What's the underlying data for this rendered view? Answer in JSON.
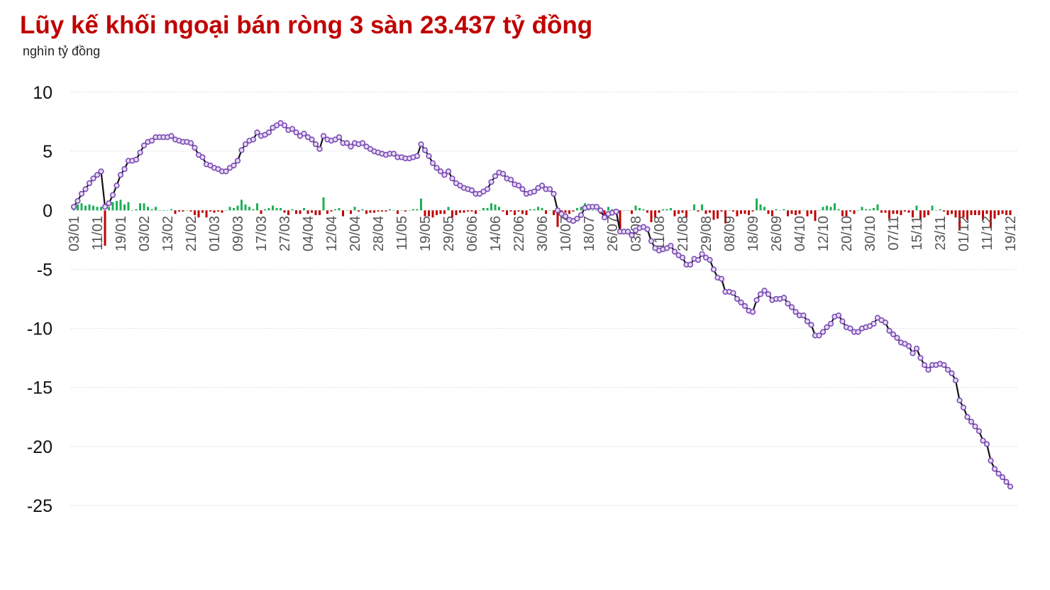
{
  "chart_data": {
    "type": "line-bar",
    "title": "Lũy kế khối ngoại bán ròng 3 sàn 23.437 tỷ đồng",
    "subtitle": "nghìn tỷ đồng",
    "ylim": [
      -25,
      10
    ],
    "yticks": [
      10,
      5,
      0,
      -5,
      -10,
      -15,
      -20,
      -25
    ],
    "grid": true,
    "categories": [
      "03/01",
      null,
      null,
      null,
      null,
      null,
      "11/01",
      null,
      null,
      null,
      null,
      null,
      "19/01",
      null,
      null,
      null,
      null,
      null,
      "03/02",
      null,
      null,
      null,
      null,
      null,
      "13/02",
      null,
      null,
      null,
      null,
      null,
      "21/02",
      null,
      null,
      null,
      null,
      null,
      "01/03",
      null,
      null,
      null,
      null,
      null,
      "09/03",
      null,
      null,
      null,
      null,
      null,
      "17/03",
      null,
      null,
      null,
      null,
      null,
      "27/03",
      null,
      null,
      null,
      null,
      null,
      "04/04",
      null,
      null,
      null,
      null,
      null,
      "12/04",
      null,
      null,
      null,
      null,
      null,
      "20/04",
      null,
      null,
      null,
      null,
      null,
      "28/04",
      null,
      null,
      null,
      null,
      null,
      "11/05",
      null,
      null,
      null,
      null,
      null,
      "19/05",
      null,
      null,
      null,
      null,
      null,
      "29/05",
      null,
      null,
      null,
      null,
      null,
      "06/06",
      null,
      null,
      null,
      null,
      null,
      "14/06",
      null,
      null,
      null,
      null,
      null,
      "22/06",
      null,
      null,
      null,
      null,
      null,
      "30/06",
      null,
      null,
      null,
      null,
      null,
      "10/07",
      null,
      null,
      null,
      null,
      null,
      "18/07",
      null,
      null,
      null,
      null,
      null,
      "26/07",
      null,
      null,
      null,
      null,
      null,
      "03/08",
      null,
      null,
      null,
      null,
      null,
      "11/08",
      null,
      null,
      null,
      null,
      null,
      "21/08",
      null,
      null,
      null,
      null,
      null,
      "29/08",
      null,
      null,
      null,
      null,
      null,
      "08/09",
      null,
      null,
      null,
      null,
      null,
      "18/09",
      null,
      null,
      null,
      null,
      null,
      "26/09",
      null,
      null,
      null,
      null,
      null,
      "04/10",
      null,
      null,
      null,
      null,
      null,
      "12/10",
      null,
      null,
      null,
      null,
      null,
      "20/10",
      null,
      null,
      null,
      null,
      null,
      "30/10",
      null,
      null,
      null,
      null,
      null,
      "07/11",
      null,
      null,
      null,
      null,
      null,
      "15/11",
      null,
      null,
      null,
      null,
      null,
      "23/11",
      null,
      null,
      null,
      null,
      null,
      "01/12",
      null,
      null,
      null,
      null,
      null,
      "11/12",
      null,
      null,
      null,
      null,
      null,
      "19/12"
    ],
    "line": {
      "color": "#111111",
      "marker_color": "#7b4bb5",
      "marker_fill": "#e6dcf3",
      "values": [
        0.3,
        0.8,
        1.4,
        1.8,
        2.3,
        2.7,
        3.0,
        3.3,
        0.3,
        0.6,
        1.3,
        2.1,
        3.0,
        3.5,
        4.2,
        4.2,
        4.3,
        4.9,
        5.5,
        5.8,
        5.9,
        6.2,
        6.2,
        6.2,
        6.2,
        6.3,
        6.0,
        5.9,
        5.8,
        5.8,
        5.7,
        5.3,
        4.7,
        4.5,
        3.9,
        3.8,
        3.6,
        3.5,
        3.3,
        3.3,
        3.6,
        3.8,
        4.2,
        5.1,
        5.6,
        5.9,
        6.0,
        6.6,
        6.3,
        6.4,
        6.6,
        7.0,
        7.2,
        7.4,
        7.2,
        6.8,
        6.9,
        6.6,
        6.3,
        6.5,
        6.2,
        6.0,
        5.6,
        5.2,
        6.3,
        6.0,
        5.9,
        6.0,
        6.2,
        5.7,
        5.7,
        5.4,
        5.7,
        5.6,
        5.7,
        5.4,
        5.2,
        5.0,
        4.9,
        4.8,
        4.7,
        4.8,
        4.8,
        4.5,
        4.5,
        4.4,
        4.4,
        4.5,
        4.6,
        5.6,
        5.1,
        4.6,
        4.0,
        3.6,
        3.3,
        3.0,
        3.3,
        2.7,
        2.3,
        2.1,
        1.9,
        1.8,
        1.7,
        1.4,
        1.4,
        1.6,
        1.8,
        2.4,
        2.9,
        3.2,
        3.1,
        2.7,
        2.6,
        2.2,
        2.1,
        1.8,
        1.4,
        1.5,
        1.6,
        1.9,
        2.1,
        1.8,
        1.8,
        1.4,
        0.0,
        -0.3,
        -0.5,
        -0.8,
        -0.9,
        -0.7,
        -0.4,
        0.2,
        0.3,
        0.3,
        0.3,
        0.0,
        -0.6,
        -0.3,
        -0.2,
        -0.1,
        -1.8,
        -1.8,
        -1.8,
        -2.1,
        -1.7,
        -1.5,
        -1.4,
        -1.6,
        -2.6,
        -3.2,
        -3.4,
        -3.3,
        -3.2,
        -3.0,
        -3.5,
        -3.8,
        -4.0,
        -4.6,
        -4.6,
        -4.1,
        -4.2,
        -3.7,
        -4.0,
        -4.2,
        -5.0,
        -5.7,
        -5.8,
        -6.9,
        -6.9,
        -7.0,
        -7.5,
        -7.8,
        -8.1,
        -8.5,
        -8.6,
        -7.6,
        -7.1,
        -6.8,
        -7.1,
        -7.6,
        -7.5,
        -7.5,
        -7.4,
        -7.9,
        -8.2,
        -8.6,
        -8.9,
        -8.9,
        -9.4,
        -9.7,
        -10.6,
        -10.6,
        -10.3,
        -9.9,
        -9.6,
        -9.0,
        -8.9,
        -9.4,
        -9.9,
        -10.0,
        -10.3,
        -10.3,
        -10.0,
        -9.9,
        -9.8,
        -9.6,
        -9.1,
        -9.3,
        -9.5,
        -10.2,
        -10.5,
        -10.8,
        -11.2,
        -11.3,
        -11.5,
        -12.1,
        -11.7,
        -12.5,
        -13.1,
        -13.5,
        -13.1,
        -13.1,
        -13.0,
        -13.1,
        -13.5,
        -13.8,
        -14.4,
        -16.1,
        -16.7,
        -17.5,
        -17.9,
        -18.3,
        -18.7,
        -19.5,
        -19.8,
        -21.2,
        -21.9,
        -22.3,
        -22.6,
        -23.0,
        -23.4
      ]
    },
    "bars": {
      "pos_color": "#1fae57",
      "neg_color": "#c00000",
      "values": [
        0.3,
        0.5,
        0.6,
        0.4,
        0.5,
        0.4,
        0.3,
        0.3,
        -3.0,
        0.3,
        0.7,
        0.8,
        0.9,
        0.5,
        0.7,
        0,
        0.1,
        0.6,
        0.6,
        0.3,
        0.1,
        0.3,
        0,
        0,
        0,
        0.1,
        -0.3,
        -0.1,
        -0.1,
        0,
        -0.1,
        -0.4,
        -0.6,
        -0.2,
        -0.6,
        -0.1,
        -0.2,
        -0.1,
        -0.2,
        0,
        0.3,
        0.2,
        0.4,
        0.9,
        0.5,
        0.3,
        0.1,
        0.6,
        -0.3,
        0.1,
        0.2,
        0.4,
        0.2,
        0.2,
        -0.2,
        -0.4,
        0.1,
        -0.3,
        -0.3,
        0.2,
        -0.3,
        -0.2,
        -0.4,
        -0.4,
        1.1,
        -0.3,
        -0.1,
        0.1,
        0.2,
        -0.5,
        0,
        -0.3,
        0.3,
        -0.1,
        0.1,
        -0.3,
        -0.2,
        -0.2,
        -0.1,
        -0.1,
        -0.1,
        0.1,
        0,
        -0.3,
        0,
        -0.1,
        0,
        0.1,
        0.1,
        1.0,
        -0.5,
        -0.5,
        -0.6,
        -0.4,
        -0.3,
        -0.3,
        0.3,
        -0.6,
        -0.4,
        -0.2,
        -0.2,
        -0.1,
        -0.1,
        -0.3,
        0,
        0.2,
        0.2,
        0.6,
        0.5,
        0.3,
        -0.1,
        -0.4,
        -0.1,
        -0.4,
        -0.1,
        -0.3,
        -0.4,
        0.1,
        0.1,
        0.3,
        0.2,
        -0.3,
        0,
        -0.4,
        -1.4,
        -0.3,
        -0.2,
        -0.3,
        -0.1,
        0.2,
        0.3,
        0.6,
        0.1,
        0,
        0,
        -0.3,
        -0.6,
        0.3,
        0.1,
        0.1,
        -1.7,
        0,
        0,
        -0.3,
        0.4,
        0.2,
        0.1,
        -0.2,
        -1.0,
        -0.6,
        -0.2,
        0.1,
        0.1,
        0.2,
        -0.5,
        -0.3,
        -0.2,
        -0.6,
        0,
        0.5,
        -0.1,
        0.5,
        -0.3,
        -0.2,
        -0.8,
        -0.7,
        -0.1,
        -1.1,
        0,
        -0.1,
        -0.5,
        -0.3,
        -0.3,
        -0.4,
        -0.1,
        1.0,
        0.5,
        0.3,
        -0.3,
        -0.5,
        0.1,
        0,
        0.1,
        -0.5,
        -0.3,
        -0.4,
        -0.3,
        0,
        -0.5,
        -0.3,
        -0.9,
        0,
        0.3,
        0.4,
        0.3,
        0.6,
        0.1,
        -0.5,
        -0.5,
        -0.1,
        -0.3,
        0,
        0.3,
        0.1,
        0.1,
        0.2,
        0.5,
        -0.2,
        -0.2,
        -0.7,
        -0.3,
        -0.3,
        -0.4,
        -0.1,
        -0.2,
        -0.6,
        0.4,
        -0.8,
        -0.6,
        -0.4,
        0.4,
        0,
        0.1,
        -0.1,
        -0.4,
        -0.3,
        -0.6,
        -1.7,
        -0.6,
        -0.8,
        -0.4,
        -0.4,
        -0.4,
        -0.8,
        -0.3,
        -1.4,
        -0.7,
        -0.4,
        -0.3,
        -0.4,
        -0.4
      ]
    }
  }
}
